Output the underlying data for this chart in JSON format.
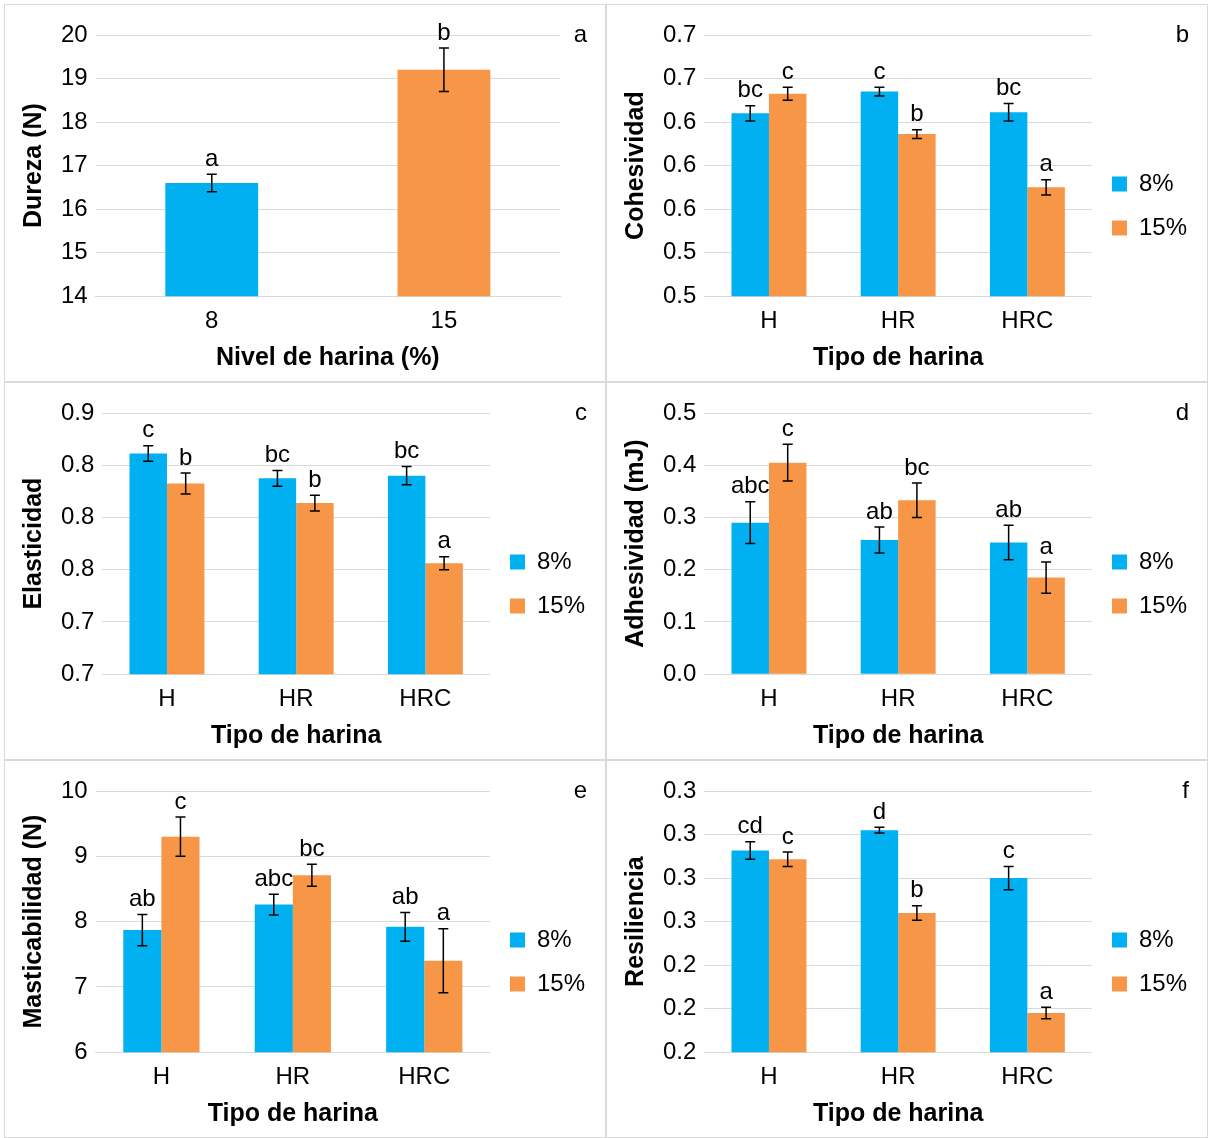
{
  "chart_data": [
    {
      "type": "bar",
      "categories": [
        "8",
        "15"
      ],
      "values": [
        16.6,
        19.2
      ],
      "colors": [
        "#00b0f0",
        "#f79646"
      ],
      "errors": [
        0.2,
        0.5
      ],
      "value_labels": [
        "a",
        "b"
      ],
      "xlabel": "Nivel de harina (%)",
      "ylabel": "Dureza (N)",
      "ylim": [
        14,
        20
      ],
      "yticks": [
        14,
        15,
        16,
        17,
        18,
        19,
        20
      ],
      "grid": "y",
      "legend": false,
      "annotations": [
        "a"
      ]
    },
    {
      "type": "bar",
      "categories": [
        "H",
        "HR",
        "HRC"
      ],
      "series": [
        {
          "name": "8%",
          "color": "#00b0f0",
          "values": [
            0.648,
            0.668,
            0.649
          ],
          "errors": [
            0.007,
            0.004,
            0.008
          ],
          "value_labels": [
            "bc",
            "c",
            "bc"
          ]
        },
        {
          "name": "15%",
          "color": "#f79646",
          "values": [
            0.666,
            0.629,
            0.58
          ],
          "errors": [
            0.006,
            0.004,
            0.007
          ],
          "value_labels": [
            "c",
            "b",
            "a"
          ]
        }
      ],
      "xlabel": "Tipo de harina",
      "ylabel": "Cohesividad",
      "ylim": [
        0.48,
        0.72
      ],
      "yticks": [
        {
          "value": 0.48,
          "label": "0.5"
        },
        {
          "value": 0.52,
          "label": "0.5"
        },
        {
          "value": 0.56,
          "label": "0.6"
        },
        {
          "value": 0.6,
          "label": "0.6"
        },
        {
          "value": 0.64,
          "label": "0.6"
        },
        {
          "value": 0.68,
          "label": "0.7"
        },
        {
          "value": 0.72,
          "label": "0.7"
        }
      ],
      "grid": "y",
      "legend": "right",
      "annotations": [
        "b"
      ]
    },
    {
      "type": "bar",
      "categories": [
        "H",
        "HR",
        "HRC"
      ],
      "series": [
        {
          "name": "8%",
          "color": "#00b0f0",
          "values": [
            0.849,
            0.83,
            0.832
          ],
          "errors": [
            0.006,
            0.006,
            0.007
          ],
          "value_labels": [
            "c",
            "bc",
            "bc"
          ]
        },
        {
          "name": "15%",
          "color": "#f79646",
          "values": [
            0.826,
            0.811,
            0.765
          ],
          "errors": [
            0.008,
            0.006,
            0.005
          ],
          "value_labels": [
            "b",
            "b",
            "a"
          ]
        }
      ],
      "xlabel": "Tipo de harina",
      "ylabel": "Elasticidad",
      "ylim": [
        0.68,
        0.88
      ],
      "yticks": [
        {
          "value": 0.68,
          "label": "0.7"
        },
        {
          "value": 0.72,
          "label": "0.7"
        },
        {
          "value": 0.76,
          "label": "0.8"
        },
        {
          "value": 0.8,
          "label": "0.8"
        },
        {
          "value": 0.84,
          "label": "0.8"
        },
        {
          "value": 0.88,
          "label": "0.9"
        }
      ],
      "grid": "y",
      "legend": "right",
      "annotations": [
        "c"
      ]
    },
    {
      "type": "bar",
      "categories": [
        "H",
        "HR",
        "HRC"
      ],
      "series": [
        {
          "name": "8%",
          "color": "#00b0f0",
          "values": [
            0.29,
            0.257,
            0.252
          ],
          "errors": [
            0.04,
            0.025,
            0.033
          ],
          "value_labels": [
            "abc",
            "ab",
            "ab"
          ]
        },
        {
          "name": "15%",
          "color": "#f79646",
          "values": [
            0.405,
            0.333,
            0.185
          ],
          "errors": [
            0.035,
            0.033,
            0.03
          ],
          "value_labels": [
            "c",
            "bc",
            "a"
          ]
        }
      ],
      "xlabel": "Tipo de harina",
      "ylabel": "Adhesividad (mJ)",
      "ylim": [
        0,
        0.5
      ],
      "yticks": [
        {
          "value": 0,
          "label": "0.0"
        },
        0.1,
        0.2,
        0.3,
        0.4,
        0.5
      ],
      "grid": "y",
      "legend": "right",
      "annotations": [
        "d"
      ]
    },
    {
      "type": "bar",
      "categories": [
        "H",
        "HR",
        "HRC"
      ],
      "series": [
        {
          "name": "8%",
          "color": "#00b0f0",
          "values": [
            7.87,
            8.26,
            7.92
          ],
          "errors": [
            0.24,
            0.16,
            0.22
          ],
          "value_labels": [
            "ab",
            "abc",
            "ab"
          ]
        },
        {
          "name": "15%",
          "color": "#f79646",
          "values": [
            9.3,
            8.71,
            7.4
          ],
          "errors": [
            0.3,
            0.17,
            0.49
          ],
          "value_labels": [
            "c",
            "bc",
            "a"
          ]
        }
      ],
      "xlabel": "Tipo de harina",
      "ylabel": "Masticabilidad (N)",
      "ylim": [
        6,
        10
      ],
      "yticks": [
        6,
        7,
        8,
        9,
        10
      ],
      "grid": "y",
      "legend": "right",
      "annotations": [
        "e"
      ]
    },
    {
      "type": "bar",
      "categories": [
        "H",
        "HR",
        "HRC"
      ],
      "series": [
        {
          "name": "8%",
          "color": "#00b0f0",
          "values": [
            0.299,
            0.313,
            0.28
          ],
          "errors": [
            0.006,
            0.002,
            0.008
          ],
          "value_labels": [
            "cd",
            "d",
            "c"
          ]
        },
        {
          "name": "15%",
          "color": "#f79646",
          "values": [
            0.293,
            0.256,
            0.187
          ],
          "errors": [
            0.005,
            0.005,
            0.004
          ],
          "value_labels": [
            "c",
            "b",
            "a"
          ]
        }
      ],
      "xlabel": "Tipo de harina",
      "ylabel": "Resiliencia",
      "ylim": [
        0.16,
        0.34
      ],
      "yticks": [
        {
          "value": 0.16,
          "label": "0.2"
        },
        {
          "value": 0.19,
          "label": "0.2"
        },
        {
          "value": 0.22,
          "label": "0.2"
        },
        {
          "value": 0.25,
          "label": "0.3"
        },
        {
          "value": 0.28,
          "label": "0.3"
        },
        {
          "value": 0.31,
          "label": "0.3"
        },
        {
          "value": 0.34,
          "label": "0.3"
        }
      ],
      "grid": "y",
      "legend": "right",
      "annotations": [
        "f"
      ]
    }
  ]
}
